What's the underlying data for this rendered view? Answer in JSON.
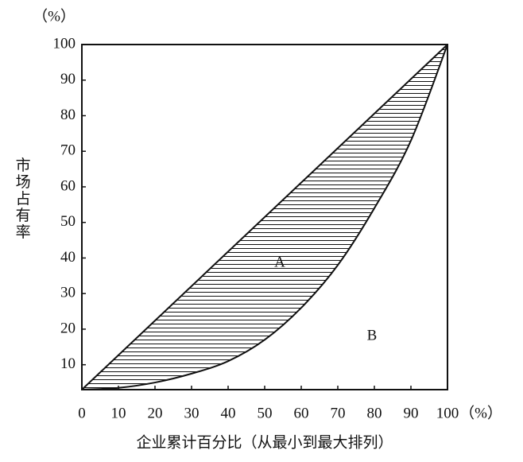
{
  "chart_data": {
    "type": "line",
    "y_unit": "（%）",
    "x_unit": "（%）",
    "y_label": "市场占有率",
    "x_label": "企业累计百分比（从最小到最大排列）",
    "annotations": [
      "A",
      "B"
    ],
    "series": [
      {
        "color": "#111111",
        "x": [
          0,
          100
        ],
        "values": [
          3,
          100
        ]
      },
      {
        "color": "#111111",
        "x": [
          0,
          10,
          20,
          30,
          40,
          50,
          60,
          70,
          80,
          90,
          100
        ],
        "values": [
          3,
          3.5,
          5,
          7.5,
          11,
          17,
          26,
          38,
          54,
          73,
          100
        ]
      }
    ],
    "hatch": true,
    "xlim": [
      0,
      100
    ],
    "xticks": [
      0,
      10,
      20,
      30,
      40,
      50,
      60,
      70,
      80,
      90,
      100
    ],
    "ylim": [
      3,
      100
    ],
    "yticks": [
      10,
      20,
      30,
      40,
      50,
      60,
      70,
      80,
      90,
      100
    ]
  }
}
